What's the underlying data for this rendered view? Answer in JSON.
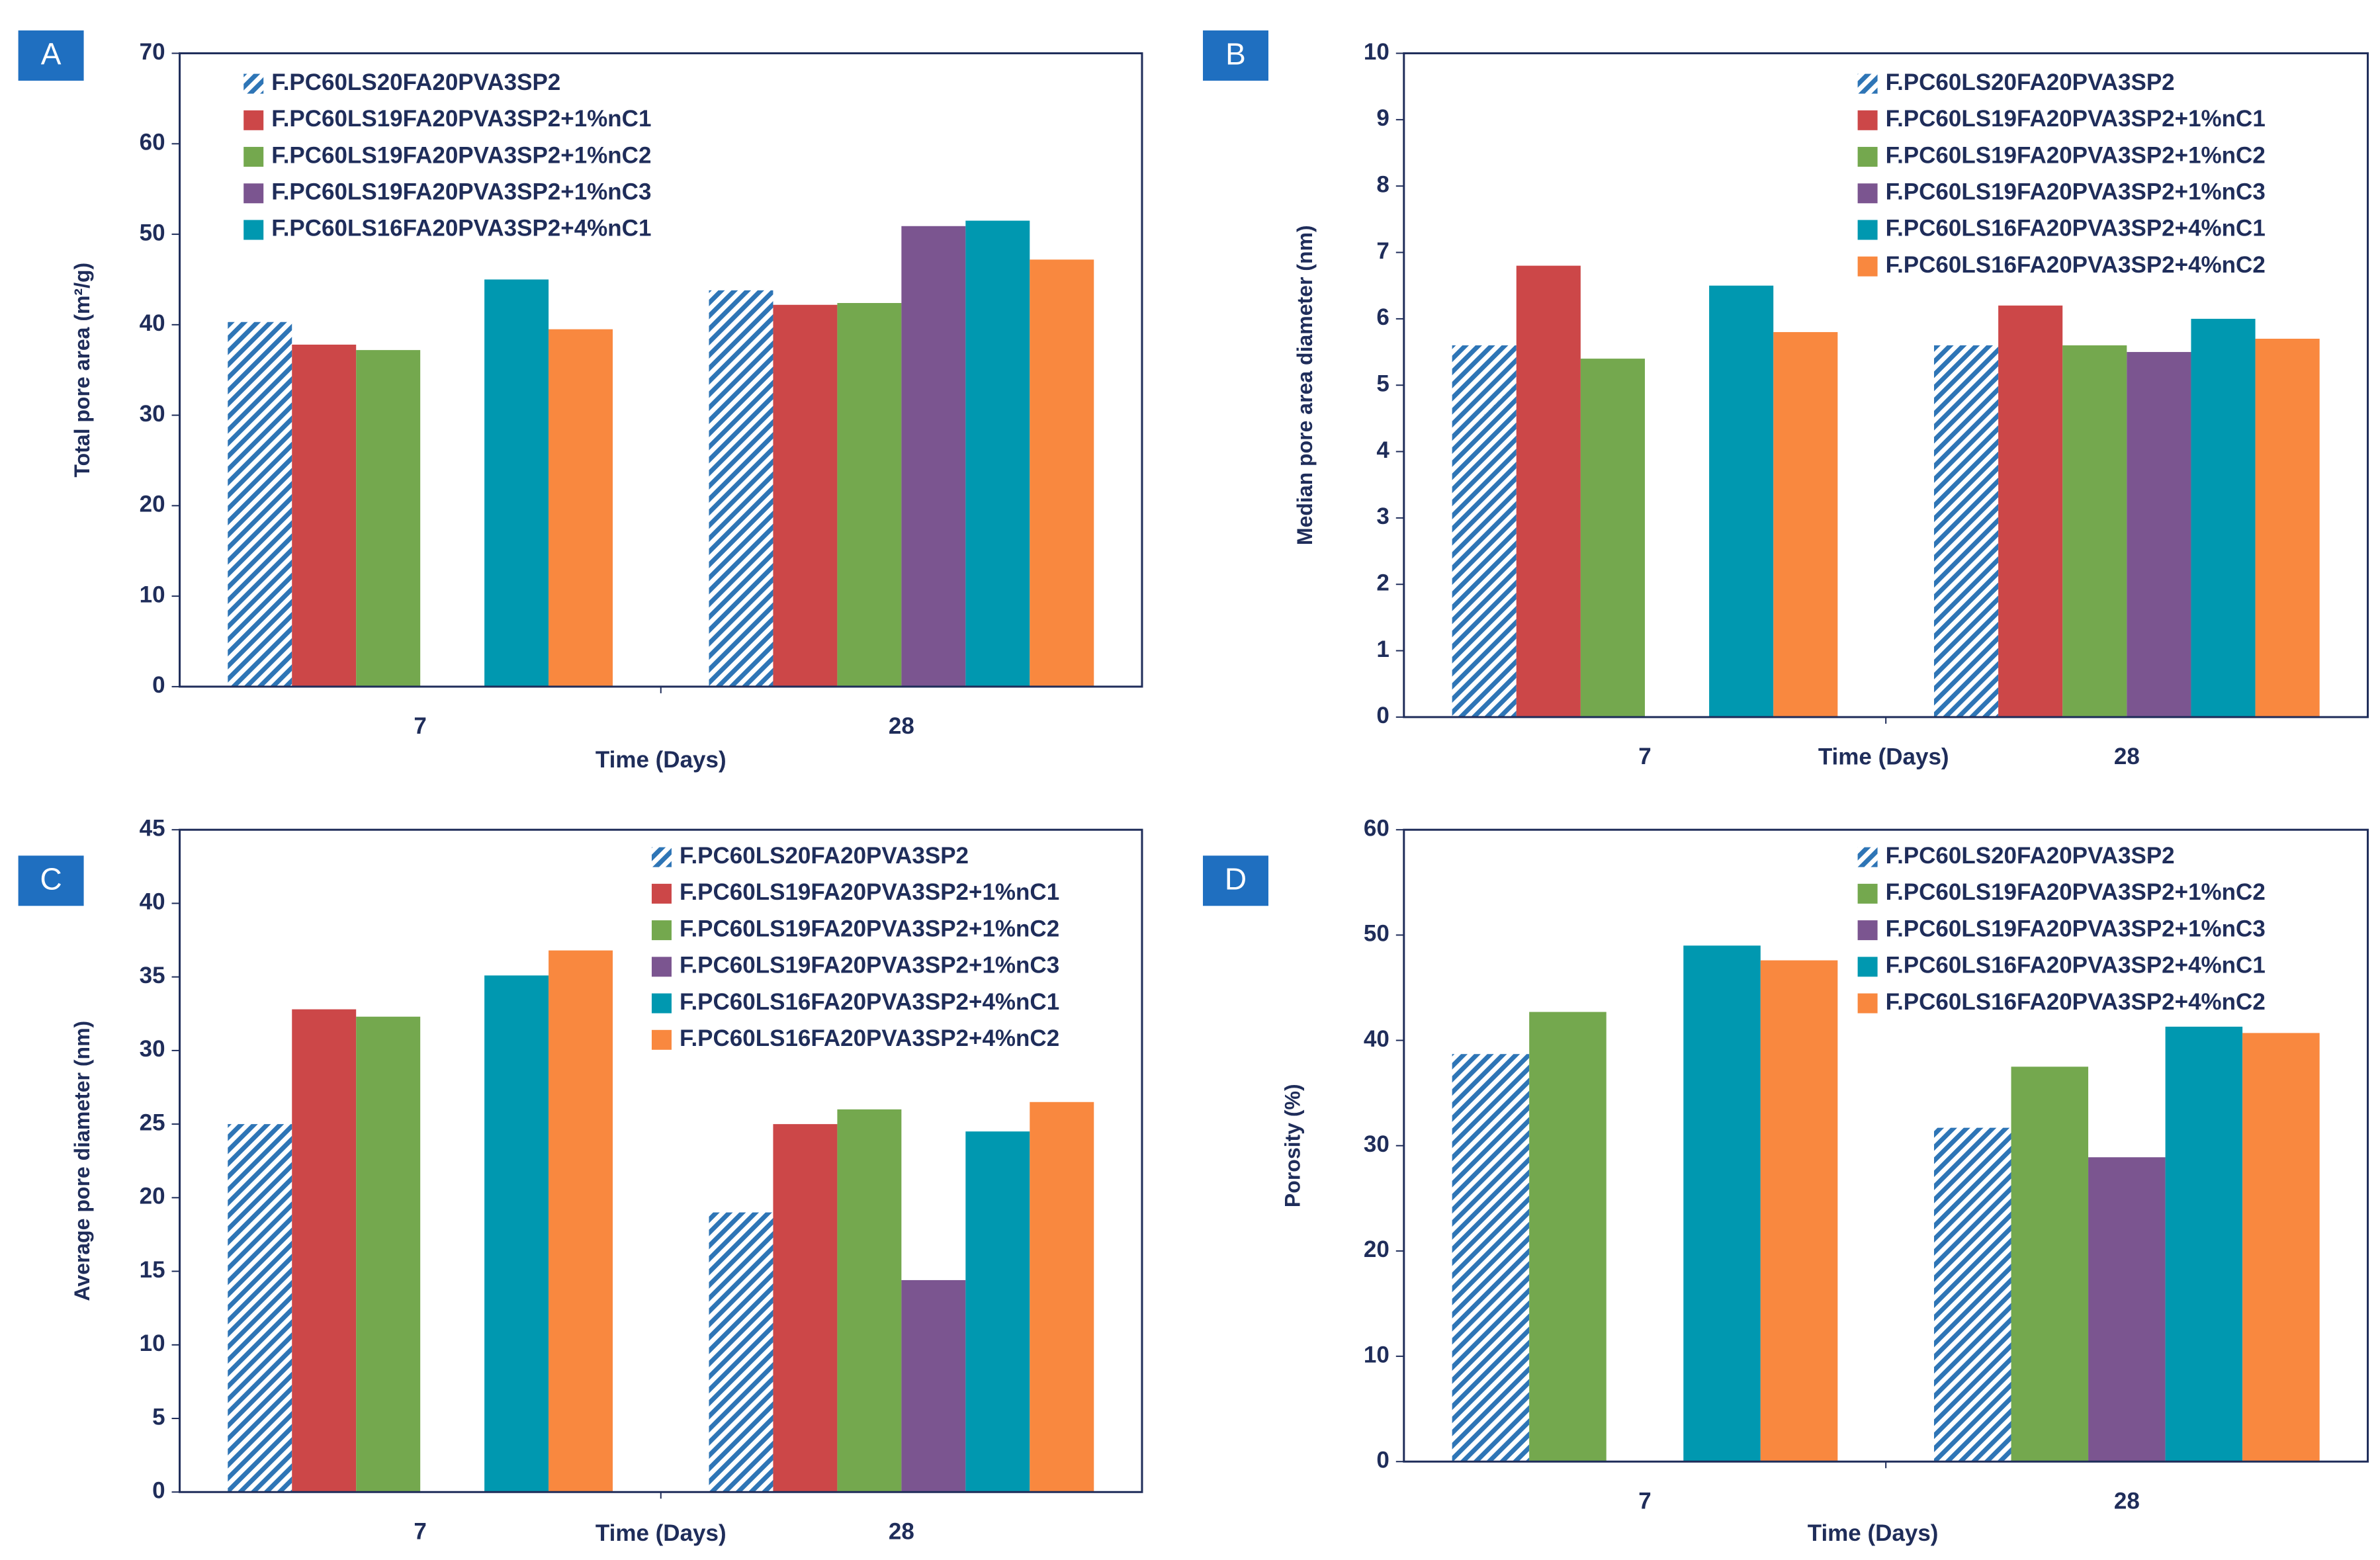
{
  "chart_data": [
    {
      "type": "bar",
      "panel_label": "A",
      "y_label": "Total pore area (m²/g)",
      "x_label": "Time (Days)",
      "categories": [
        "7",
        "28"
      ],
      "ylim": [
        0,
        70
      ],
      "yticks": [
        0,
        10,
        20,
        30,
        40,
        50,
        60,
        70
      ],
      "series": [
        {
          "name": "F.PC60LS20FA20PVA3SP2",
          "color": "#2e75b6",
          "pattern": "hatch",
          "values": [
            40.3,
            43.8
          ]
        },
        {
          "name": "F.PC60LS19FA20PVA3SP2+1%nC1",
          "color": "#cc4748",
          "values": [
            37.8,
            42.2
          ]
        },
        {
          "name": "F.PC60LS19FA20PVA3SP2+1%nC2",
          "color": "#74a84e",
          "values": [
            37.2,
            42.4
          ]
        },
        {
          "name": "F.PC60LS19FA20PVA3SP2+1%nC3",
          "color": "#7b5590",
          "values": [
            null,
            50.9
          ]
        },
        {
          "name": "F.PC60LS16FA20PVA3SP2+4%nC1",
          "color": "#0098b0",
          "values": [
            45.0,
            51.5
          ]
        },
        {
          "color": "#f9883f",
          "values": [
            39.5,
            47.2
          ]
        }
      ]
    },
    {
      "type": "bar",
      "panel_label": "B",
      "y_label": "Median pore area diameter (nm)",
      "x_label": "Time (Days)",
      "categories": [
        "7",
        "28"
      ],
      "ylim": [
        0,
        10
      ],
      "yticks": [
        0,
        1,
        2,
        3,
        4,
        5,
        6,
        7,
        8,
        9,
        10
      ],
      "series": [
        {
          "name": "F.PC60LS20FA20PVA3SP2",
          "color": "#2e75b6",
          "pattern": "hatch",
          "values": [
            5.6,
            5.6
          ]
        },
        {
          "name": "F.PC60LS19FA20PVA3SP2+1%nC1",
          "color": "#cc4748",
          "values": [
            6.8,
            6.2
          ]
        },
        {
          "name": "F.PC60LS19FA20PVA3SP2+1%nC2",
          "color": "#74a84e",
          "values": [
            5.4,
            5.6
          ]
        },
        {
          "name": "F.PC60LS19FA20PVA3SP2+1%nC3",
          "color": "#7b5590",
          "values": [
            null,
            5.5
          ]
        },
        {
          "name": "F.PC60LS16FA20PVA3SP2+4%nC1",
          "color": "#0098b0",
          "values": [
            6.5,
            6.0
          ]
        },
        {
          "name": "F.PC60LS16FA20PVA3SP2+4%nC2",
          "color": "#f9883f",
          "values": [
            5.8,
            5.7
          ]
        }
      ]
    },
    {
      "type": "bar",
      "panel_label": "C",
      "y_label": "Average pore diameter (nm)",
      "x_label": "Time (Days)",
      "categories": [
        "7",
        "28"
      ],
      "ylim": [
        0,
        45
      ],
      "yticks": [
        0,
        5,
        10,
        15,
        20,
        25,
        30,
        35,
        40,
        45
      ],
      "series": [
        {
          "name": "F.PC60LS20FA20PVA3SP2",
          "color": "#2e75b6",
          "pattern": "hatch",
          "values": [
            25.0,
            19.0
          ]
        },
        {
          "name": "F.PC60LS19FA20PVA3SP2+1%nC1",
          "color": "#cc4748",
          "values": [
            32.8,
            25.0
          ]
        },
        {
          "name": "F.PC60LS19FA20PVA3SP2+1%nC2",
          "color": "#74a84e",
          "values": [
            32.3,
            26.0
          ]
        },
        {
          "name": "F.PC60LS19FA20PVA3SP2+1%nC3",
          "color": "#7b5590",
          "values": [
            null,
            14.4
          ]
        },
        {
          "name": "F.PC60LS16FA20PVA3SP2+4%nC1",
          "color": "#0098b0",
          "values": [
            35.1,
            24.5
          ]
        },
        {
          "name": "F.PC60LS16FA20PVA3SP2+4%nC2",
          "color": "#f9883f",
          "values": [
            36.8,
            26.5
          ]
        }
      ]
    },
    {
      "type": "bar",
      "panel_label": "D",
      "y_label": "Porosity (%)",
      "x_label": "Time (Days)",
      "categories": [
        "7",
        "28"
      ],
      "ylim": [
        0,
        60
      ],
      "yticks": [
        0,
        10,
        20,
        30,
        40,
        50,
        60
      ],
      "series": [
        {
          "name": "F.PC60LS20FA20PVA3SP2",
          "color": "#2e75b6",
          "pattern": "hatch",
          "values": [
            38.7,
            31.7
          ]
        },
        {
          "name": "F.PC60LS19FA20PVA3SP2+1%nC2",
          "color": "#74a84e",
          "values": [
            42.7,
            37.5
          ]
        },
        {
          "name": "F.PC60LS19FA20PVA3SP2+1%nC3",
          "color": "#7b5590",
          "values": [
            null,
            28.9
          ]
        },
        {
          "name": "F.PC60LS16FA20PVA3SP2+4%nC1",
          "color": "#0098b0",
          "values": [
            49.0,
            41.3
          ]
        },
        {
          "name": "F.PC60LS16FA20PVA3SP2+4%nC2",
          "color": "#f9883f",
          "values": [
            47.6,
            40.7
          ]
        }
      ]
    }
  ]
}
